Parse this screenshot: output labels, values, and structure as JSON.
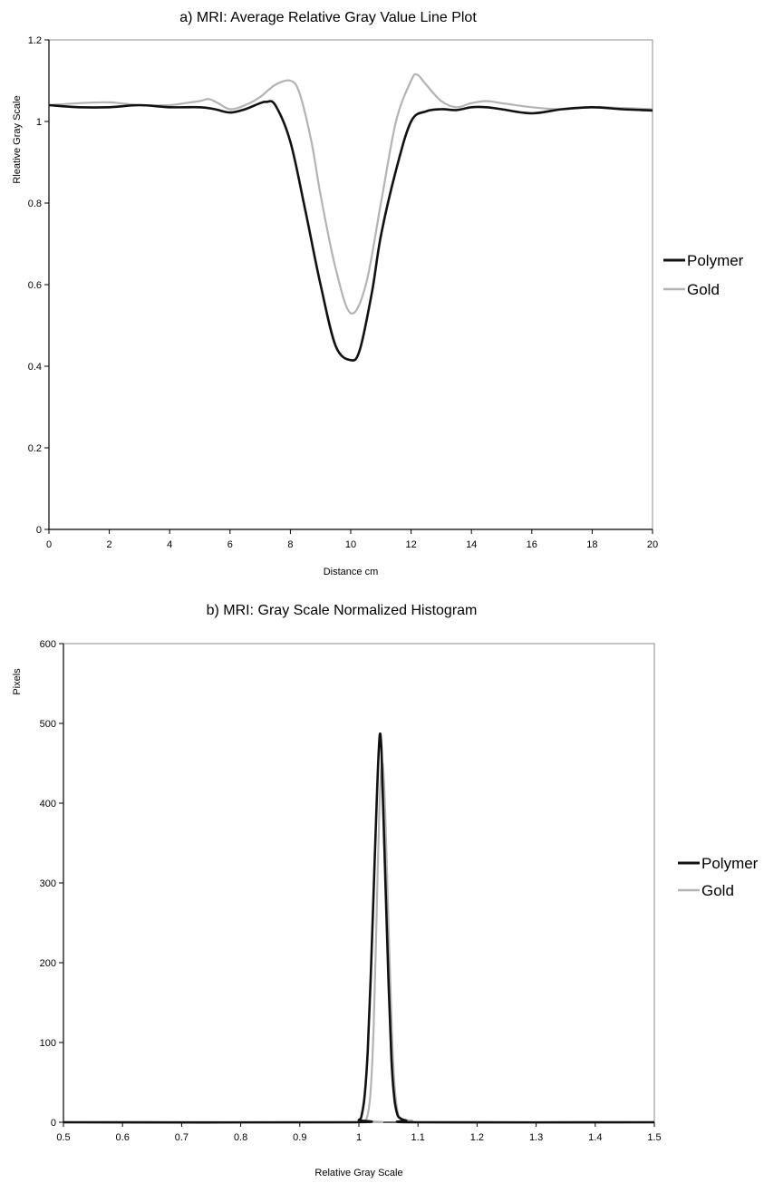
{
  "chart_data": [
    {
      "type": "line",
      "title": "a) MRI: Average Relative Gray Value Line Plot",
      "xlabel": "Distance cm",
      "ylabel": "Rleative Gray Scale",
      "xlim": [
        0,
        20
      ],
      "ylim": [
        0,
        1.2
      ],
      "xticks": [
        "0",
        "2",
        "4",
        "6",
        "8",
        "10",
        "12",
        "14",
        "16",
        "18",
        "20"
      ],
      "yticks": [
        "0",
        "0.2",
        "0.4",
        "0.6",
        "0.8",
        "1",
        "1.2"
      ],
      "grid": false,
      "legend_position": "right",
      "series": [
        {
          "name": "Polymer",
          "color": "#111111",
          "x": [
            0,
            1,
            2,
            3,
            4,
            5,
            5.5,
            6,
            6.5,
            7,
            7.2,
            7.5,
            8,
            8.5,
            9,
            9.5,
            10,
            10.3,
            10.7,
            11,
            11.5,
            12,
            12.5,
            13,
            13.5,
            14,
            14.5,
            15,
            16,
            17,
            18,
            19,
            20
          ],
          "y": [
            1.04,
            1.035,
            1.035,
            1.04,
            1.035,
            1.035,
            1.03,
            1.022,
            1.03,
            1.045,
            1.048,
            1.04,
            0.95,
            0.78,
            0.6,
            0.45,
            0.415,
            0.44,
            0.58,
            0.72,
            0.88,
            1.0,
            1.025,
            1.03,
            1.028,
            1.035,
            1.035,
            1.03,
            1.02,
            1.03,
            1.035,
            1.03,
            1.027
          ]
        },
        {
          "name": "Gold",
          "color": "#b3b3b3",
          "x": [
            0,
            1,
            2,
            3,
            4,
            4.5,
            5,
            5.3,
            5.6,
            6,
            6.5,
            7,
            7.5,
            8,
            8.3,
            8.7,
            9,
            9.5,
            10,
            10.5,
            11,
            11.5,
            12,
            12.2,
            12.5,
            13,
            13.5,
            14,
            14.5,
            15,
            16,
            17,
            18,
            19,
            20
          ],
          "y": [
            1.04,
            1.045,
            1.047,
            1.04,
            1.04,
            1.045,
            1.05,
            1.055,
            1.045,
            1.03,
            1.04,
            1.06,
            1.09,
            1.1,
            1.07,
            0.95,
            0.82,
            0.64,
            0.53,
            0.6,
            0.8,
            1.0,
            1.1,
            1.115,
            1.09,
            1.05,
            1.035,
            1.045,
            1.05,
            1.045,
            1.035,
            1.03,
            1.035,
            1.033,
            1.03
          ]
        }
      ]
    },
    {
      "type": "line",
      "title": "b) MRI: Gray Scale Normalized Histogram",
      "xlabel": "Relative Gray Scale",
      "ylabel": "Pixels",
      "xlim": [
        0.5,
        1.5
      ],
      "ylim": [
        0,
        600
      ],
      "xticks": [
        "0.5",
        "0.6",
        "0.7",
        "0.8",
        "0.9",
        "1",
        "1.1",
        "1.2",
        "1.3",
        "1.4",
        "1.5"
      ],
      "yticks": [
        "0",
        "100",
        "200",
        "300",
        "400",
        "500",
        "600"
      ],
      "grid": false,
      "legend_position": "right",
      "series": [
        {
          "name": "Polymer",
          "color": "#111111",
          "x": [
            0.5,
            0.98,
            1.0,
            1.005,
            1.01,
            1.015,
            1.02,
            1.025,
            1.03,
            1.035,
            1.038,
            1.04,
            1.045,
            1.05,
            1.055,
            1.06,
            1.065,
            1.07,
            1.08,
            1.1,
            1.5
          ],
          "y": [
            0,
            0,
            3,
            10,
            35,
            90,
            180,
            290,
            400,
            483,
            470,
            420,
            300,
            180,
            80,
            30,
            10,
            5,
            2,
            0,
            0
          ]
        },
        {
          "name": "Gold",
          "color": "#b3b3b3",
          "x": [
            0.5,
            1.0,
            1.01,
            1.015,
            1.02,
            1.025,
            1.03,
            1.035,
            1.04,
            1.045,
            1.05,
            1.055,
            1.06,
            1.065,
            1.07,
            1.08,
            1.09,
            1.1,
            1.5
          ],
          "y": [
            0,
            0,
            2,
            10,
            40,
            120,
            260,
            400,
            450,
            380,
            250,
            130,
            50,
            15,
            5,
            3,
            2,
            0,
            0
          ]
        }
      ]
    }
  ]
}
